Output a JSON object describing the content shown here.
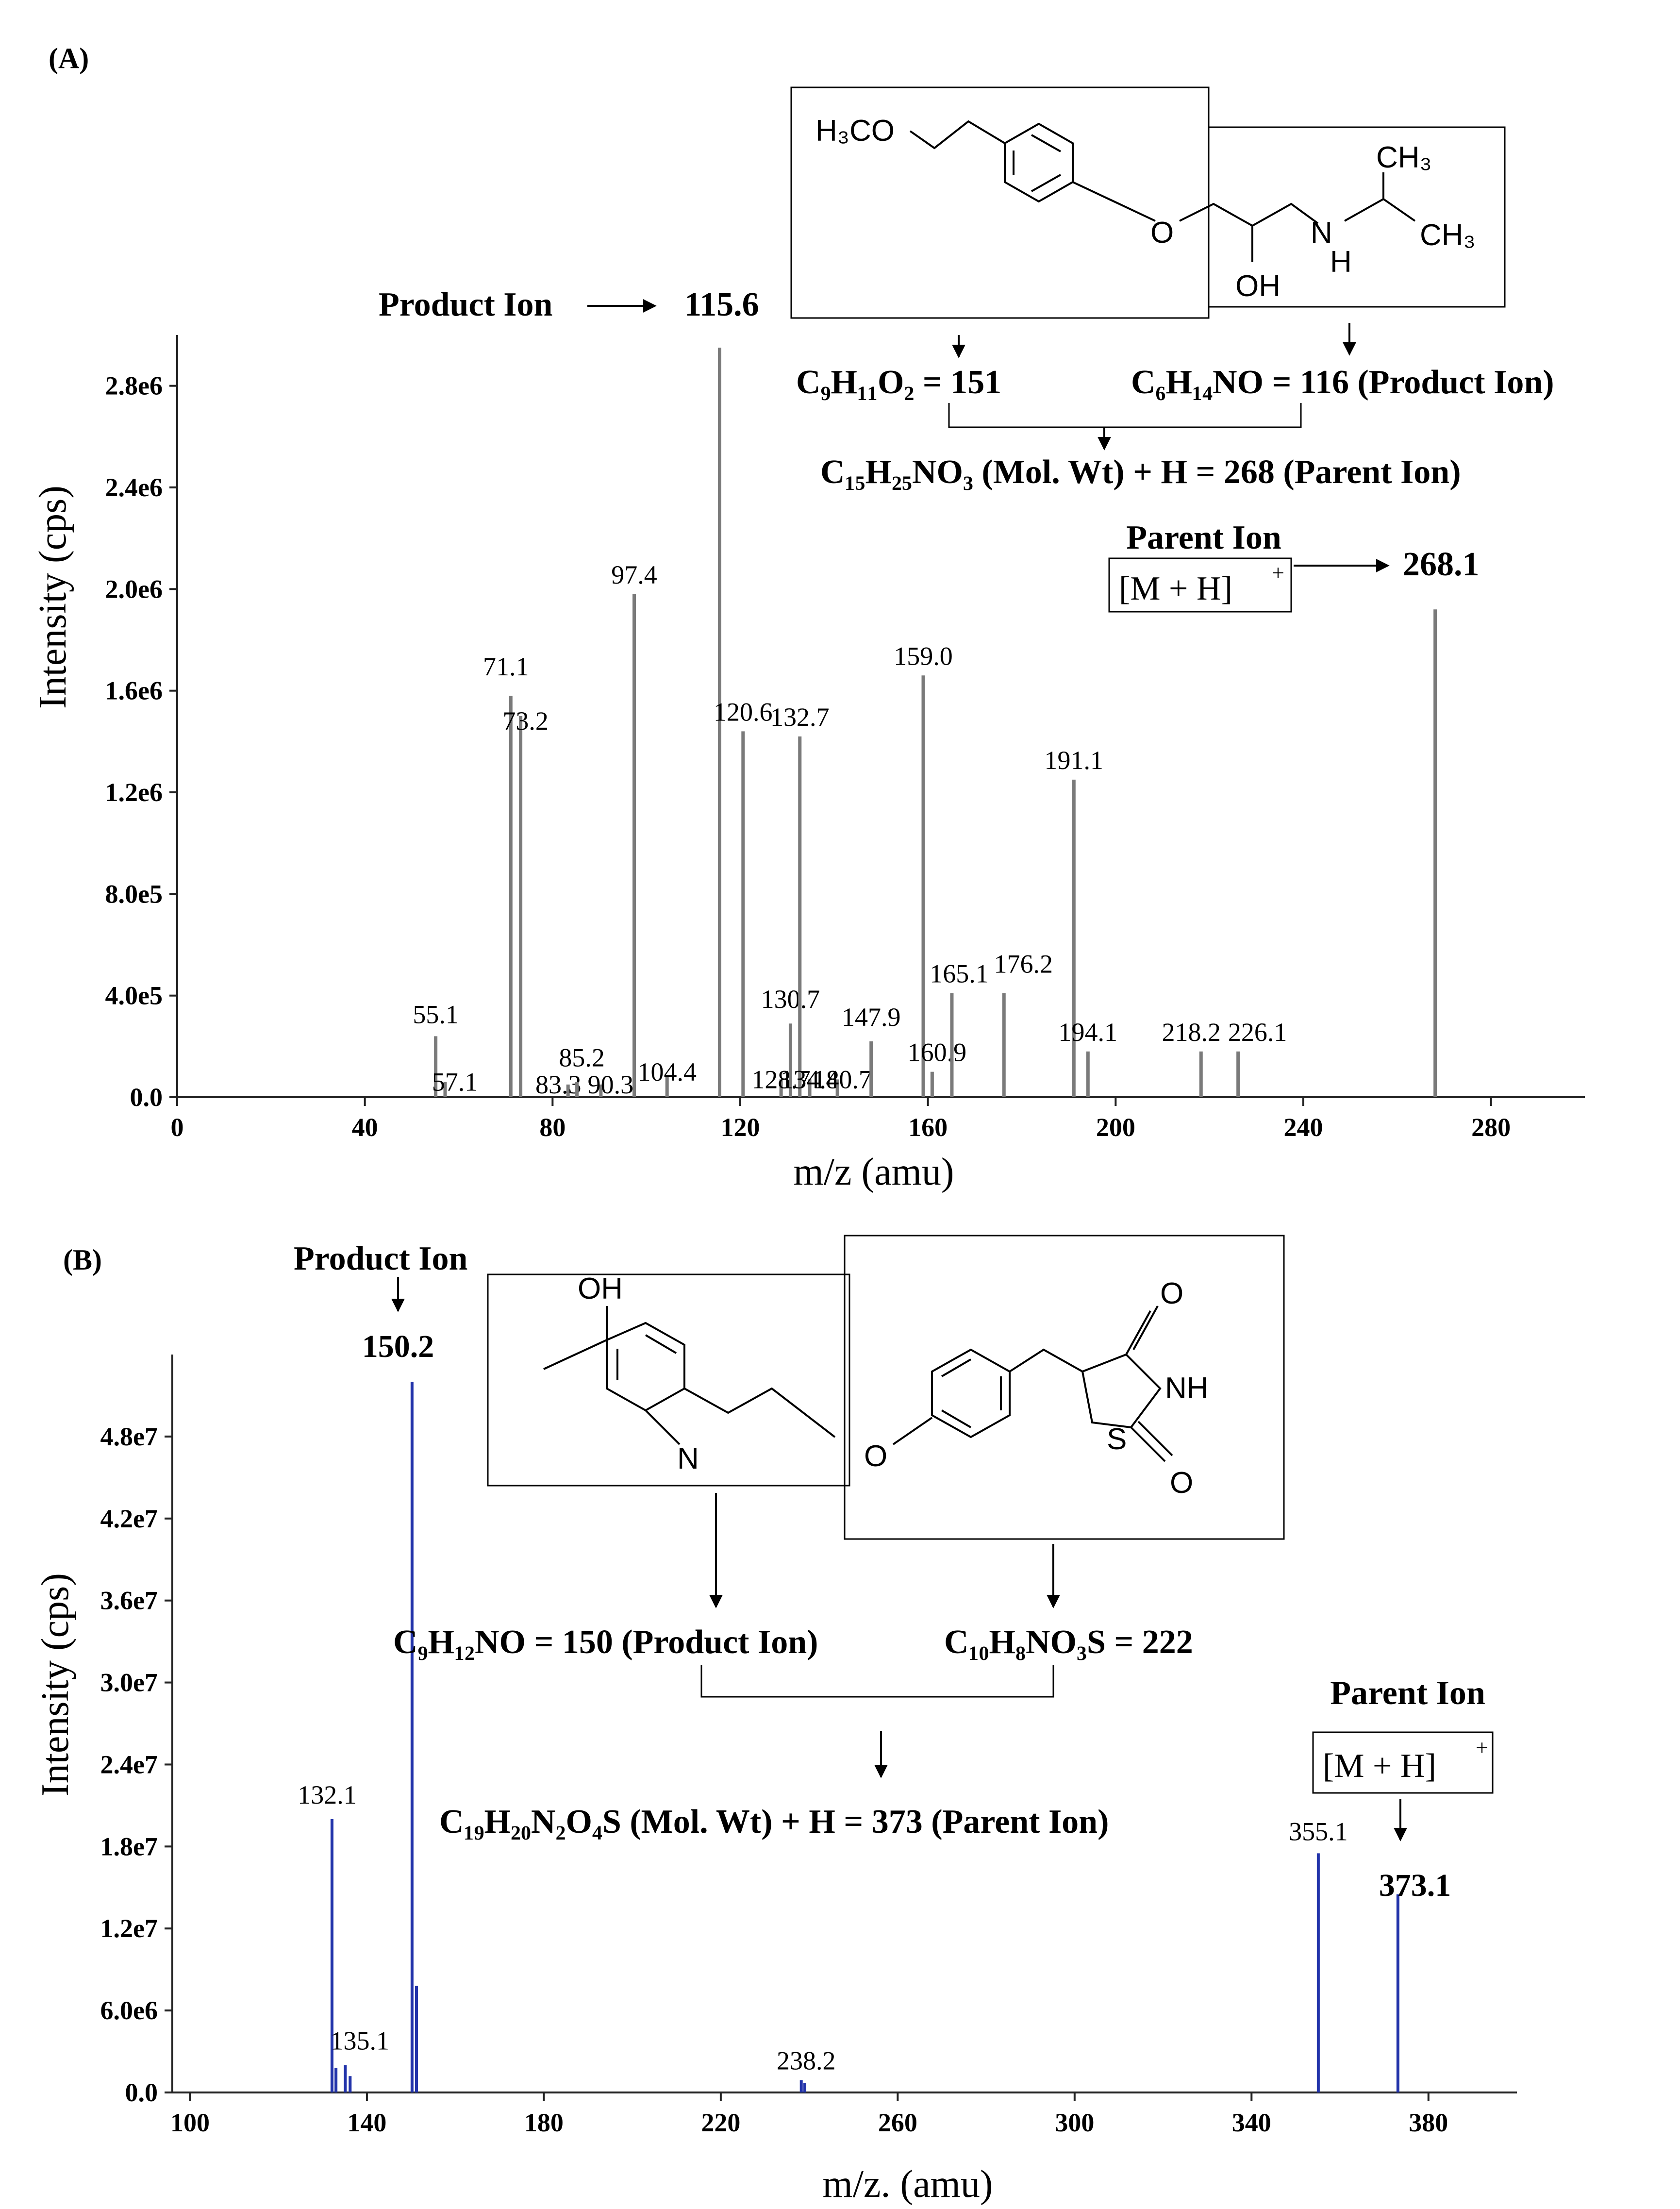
{
  "chart_data": [
    {
      "type": "bar",
      "panel_label": "(A)",
      "xlabel": "m/z (amu)",
      "ylabel": "Intensity (cps)",
      "xlim": [
        0,
        300
      ],
      "ylim": [
        0,
        3000000
      ],
      "x_ticks": [
        0,
        40,
        80,
        120,
        160,
        200,
        240,
        280
      ],
      "x_tick_labels": [
        "0",
        "40",
        "80",
        "120",
        "160",
        "200",
        "240",
        "280"
      ],
      "y_ticks": [
        0,
        400000,
        800000,
        1200000,
        1600000,
        2000000,
        2400000,
        2800000
      ],
      "y_tick_labels": [
        "0.0",
        "4.0e5",
        "8.0e5",
        "1.2e6",
        "1.6e6",
        "2.0e6",
        "2.4e6",
        "2.8e6"
      ],
      "bar_color": "#7a7a7a",
      "peaks": [
        {
          "x": 55.1,
          "y": 240000,
          "label": "55.1"
        },
        {
          "x": 57.1,
          "y": 60000,
          "label": "57.1"
        },
        {
          "x": 71.1,
          "y": 1580000,
          "label": "71.1"
        },
        {
          "x": 73.2,
          "y": 1500000,
          "label": "73.2"
        },
        {
          "x": 83.3,
          "y": 50000,
          "label": "83.3"
        },
        {
          "x": 85.2,
          "y": 60000,
          "label": "85.2"
        },
        {
          "x": 90.3,
          "y": 50000,
          "label": "90.3"
        },
        {
          "x": 97.4,
          "y": 1980000,
          "label": "97.4"
        },
        {
          "x": 104.4,
          "y": 80000,
          "label": "104.4"
        },
        {
          "x": 115.6,
          "y": 2950000,
          "label": ""
        },
        {
          "x": 120.6,
          "y": 1440000,
          "label": "120.6"
        },
        {
          "x": 128.7,
          "y": 70000,
          "label": "128.7"
        },
        {
          "x": 130.7,
          "y": 290000,
          "label": "130.7"
        },
        {
          "x": 132.7,
          "y": 1420000,
          "label": "132.7"
        },
        {
          "x": 134.8,
          "y": 70000,
          "label": "134.8"
        },
        {
          "x": 140.7,
          "y": 70000,
          "label": "140.7"
        },
        {
          "x": 147.9,
          "y": 220000,
          "label": "147.9"
        },
        {
          "x": 159.0,
          "y": 1660000,
          "label": "159.0"
        },
        {
          "x": 160.9,
          "y": 100000,
          "label": "160.9"
        },
        {
          "x": 165.1,
          "y": 410000,
          "label": "165.1"
        },
        {
          "x": 176.2,
          "y": 410000,
          "label": "176.2"
        },
        {
          "x": 191.1,
          "y": 1250000,
          "label": "191.1"
        },
        {
          "x": 194.1,
          "y": 180000,
          "label": "194.1"
        },
        {
          "x": 218.2,
          "y": 180000,
          "label": "218.2"
        },
        {
          "x": 226.1,
          "y": 180000,
          "label": "226.1"
        },
        {
          "x": 268.1,
          "y": 1920000,
          "label": ""
        }
      ]
    },
    {
      "type": "bar",
      "panel_label": "(B)",
      "xlabel": "m/z. (amu)",
      "ylabel": "Intensity (cps)",
      "xlim": [
        96,
        400
      ],
      "ylim": [
        0,
        54000000
      ],
      "x_ticks": [
        100,
        140,
        180,
        220,
        260,
        300,
        340,
        380
      ],
      "x_tick_labels": [
        "100",
        "140",
        "180",
        "220",
        "260",
        "300",
        "340",
        "380"
      ],
      "y_ticks": [
        0,
        6000000,
        12000000,
        18000000,
        24000000,
        30000000,
        36000000,
        42000000,
        48000000
      ],
      "y_tick_labels": [
        "0.0",
        "6.0e6",
        "1.2e7",
        "1.8e7",
        "2.4e7",
        "3.0e7",
        "3.6e7",
        "4.2e7",
        "4.8e7"
      ],
      "bar_color": "#2233aa",
      "peaks": [
        {
          "x": 132.1,
          "y": 20000000,
          "label": "132.1"
        },
        {
          "x": 133.0,
          "y": 1800000,
          "label": ""
        },
        {
          "x": 135.1,
          "y": 2000000,
          "label": "135.1"
        },
        {
          "x": 136.2,
          "y": 1200000,
          "label": ""
        },
        {
          "x": 150.2,
          "y": 52000000,
          "label": ""
        },
        {
          "x": 151.2,
          "y": 7800000,
          "label": ""
        },
        {
          "x": 238.2,
          "y": 900000,
          "label": "238.2"
        },
        {
          "x": 239.0,
          "y": 700000,
          "label": ""
        },
        {
          "x": 355.1,
          "y": 17500000,
          "label": "355.1"
        },
        {
          "x": 373.1,
          "y": 14500000,
          "label": ""
        }
      ]
    }
  ],
  "panel_a": {
    "product_ion_label": "Product Ion",
    "product_ion_value": "115.6",
    "parent_ion_label": "Parent Ion",
    "parent_ion_box": "[M + H]",
    "parent_ion_sup": "+",
    "parent_ion_value": "268.1",
    "structure": {
      "h3co": "H₃CO",
      "o": "O",
      "oh": "OH",
      "n": "N",
      "h": "H",
      "ch3": "CH₃"
    },
    "formula_fragment_1": "C₉H₁₁O₂ = 151",
    "formula_fragment_2": "C₆H₁₄NO = 116 (Product Ion)",
    "formula_parent": "C₁₅H₂₅NO₃ (Mol. Wt) + H = 268 (Parent Ion)"
  },
  "panel_b": {
    "product_ion_label": "Product Ion",
    "product_ion_value": "150.2",
    "parent_ion_label": "Parent Ion",
    "parent_ion_box": "[M + H]",
    "parent_ion_sup": "+",
    "parent_ion_value": "373.1",
    "structure": {
      "oh": "OH",
      "n": "N",
      "o_ether": "O",
      "o_carbonyl_top": "O",
      "nh": "NH",
      "s": "S",
      "o_carbonyl_bottom": "O"
    },
    "formula_fragment_1": "C₉H₁₂NO = 150 (Product Ion)",
    "formula_fragment_2": "C₁₀H₈NO₃S = 222",
    "formula_parent": "C₁₉H₂₀N₂O₄S (Mol. Wt) + H = 373 (Parent Ion)"
  }
}
